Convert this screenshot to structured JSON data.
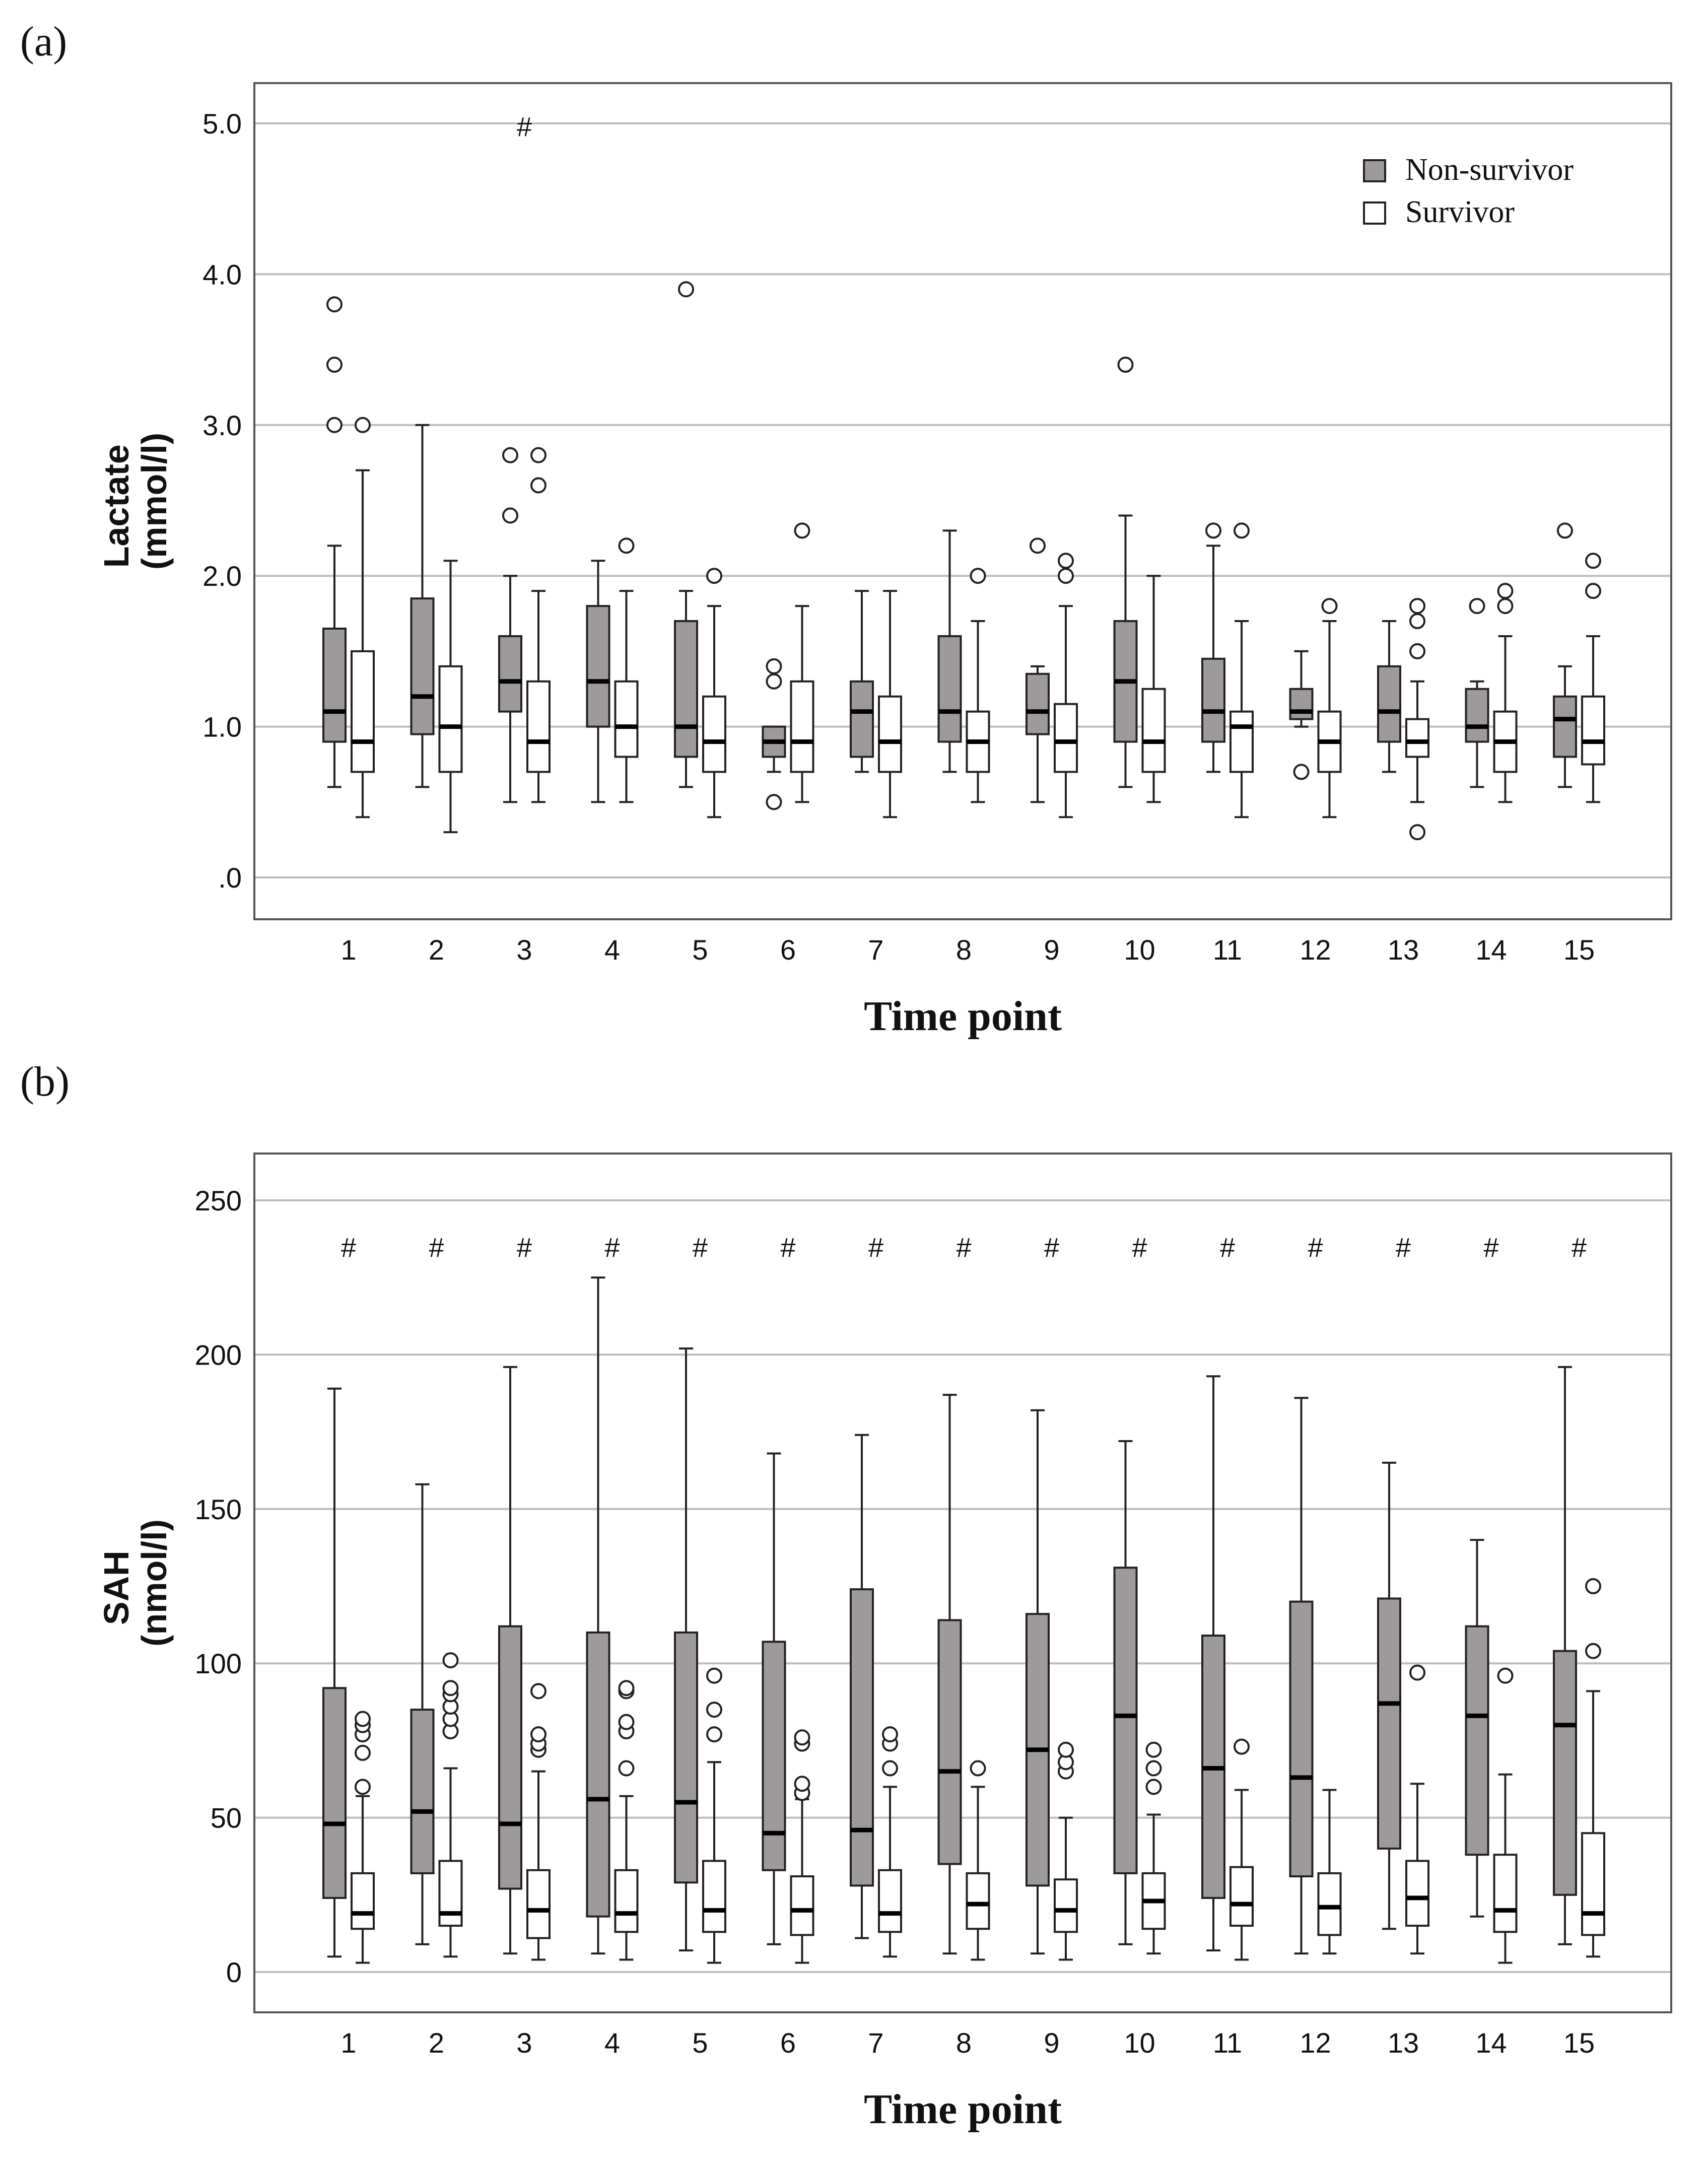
{
  "colors": {
    "non_survivor": "#9e9a9b",
    "survivor": "#ffffff",
    "stroke": "#222222",
    "grid": "#bdbdbd"
  },
  "chart_data": [
    {
      "type": "box",
      "panel_label": "(a)",
      "xlabel": "Time point",
      "ylabel_line1": "Lactate",
      "ylabel_line2": "(mmol/l)",
      "ylim": [
        0,
        5.0
      ],
      "yticks": [
        0,
        1.0,
        2.0,
        3.0,
        4.0,
        5.0
      ],
      "ytick_labels": [
        ".0",
        "1.0",
        "2.0",
        "3.0",
        "4.0",
        "5.0"
      ],
      "categories": [
        "1",
        "2",
        "3",
        "4",
        "5",
        "6",
        "7",
        "8",
        "9",
        "10",
        "11",
        "12",
        "13",
        "14",
        "15"
      ],
      "grid": true,
      "legend": {
        "position": "top-right",
        "entries": [
          "Non-survivor",
          "Survivor"
        ]
      },
      "significance_marks": [
        {
          "category": "3",
          "label": "#"
        }
      ],
      "series": [
        {
          "name": "Non-survivor",
          "boxes": [
            {
              "min": 0.6,
              "q1": 0.9,
              "median": 1.1,
              "q3": 1.65,
              "max": 2.2,
              "outliers": [
                3.0,
                3.4,
                3.8
              ]
            },
            {
              "min": 0.6,
              "q1": 0.95,
              "median": 1.2,
              "q3": 1.85,
              "max": 3.0,
              "outliers": []
            },
            {
              "min": 0.5,
              "q1": 1.1,
              "median": 1.3,
              "q3": 1.6,
              "max": 2.0,
              "outliers": [
                2.4,
                2.8
              ]
            },
            {
              "min": 0.5,
              "q1": 1.0,
              "median": 1.3,
              "q3": 1.8,
              "max": 2.1,
              "outliers": []
            },
            {
              "min": 0.6,
              "q1": 0.8,
              "median": 1.0,
              "q3": 1.7,
              "max": 1.9,
              "outliers": [
                3.9
              ]
            },
            {
              "min": 0.7,
              "q1": 0.8,
              "median": 0.9,
              "q3": 1.0,
              "max": 1.0,
              "outliers": [
                0.5,
                1.3,
                1.4
              ]
            },
            {
              "min": 0.7,
              "q1": 0.8,
              "median": 1.1,
              "q3": 1.3,
              "max": 1.9,
              "outliers": []
            },
            {
              "min": 0.7,
              "q1": 0.9,
              "median": 1.1,
              "q3": 1.6,
              "max": 2.3,
              "outliers": []
            },
            {
              "min": 0.5,
              "q1": 0.95,
              "median": 1.1,
              "q3": 1.35,
              "max": 1.4,
              "outliers": [
                2.2
              ]
            },
            {
              "min": 0.6,
              "q1": 0.9,
              "median": 1.3,
              "q3": 1.7,
              "max": 2.4,
              "outliers": [
                3.4
              ]
            },
            {
              "min": 0.7,
              "q1": 0.9,
              "median": 1.1,
              "q3": 1.45,
              "max": 2.2,
              "outliers": [
                2.3
              ]
            },
            {
              "min": 1.0,
              "q1": 1.05,
              "median": 1.1,
              "q3": 1.25,
              "max": 1.5,
              "outliers": [
                0.7
              ]
            },
            {
              "min": 0.7,
              "q1": 0.9,
              "median": 1.1,
              "q3": 1.4,
              "max": 1.7,
              "outliers": []
            },
            {
              "min": 0.6,
              "q1": 0.9,
              "median": 1.0,
              "q3": 1.25,
              "max": 1.3,
              "outliers": [
                1.8
              ]
            },
            {
              "min": 0.6,
              "q1": 0.8,
              "median": 1.05,
              "q3": 1.2,
              "max": 1.4,
              "outliers": [
                2.3
              ]
            }
          ]
        },
        {
          "name": "Survivor",
          "boxes": [
            {
              "min": 0.4,
              "q1": 0.7,
              "median": 0.9,
              "q3": 1.5,
              "max": 2.7,
              "outliers": [
                3.0
              ]
            },
            {
              "min": 0.3,
              "q1": 0.7,
              "median": 1.0,
              "q3": 1.4,
              "max": 2.1,
              "outliers": []
            },
            {
              "min": 0.5,
              "q1": 0.7,
              "median": 0.9,
              "q3": 1.3,
              "max": 1.9,
              "outliers": [
                2.6,
                2.8
              ]
            },
            {
              "min": 0.5,
              "q1": 0.8,
              "median": 1.0,
              "q3": 1.3,
              "max": 1.9,
              "outliers": [
                2.2
              ]
            },
            {
              "min": 0.4,
              "q1": 0.7,
              "median": 0.9,
              "q3": 1.2,
              "max": 1.8,
              "outliers": [
                2.0
              ]
            },
            {
              "min": 0.5,
              "q1": 0.7,
              "median": 0.9,
              "q3": 1.3,
              "max": 1.8,
              "outliers": [
                2.3
              ]
            },
            {
              "min": 0.4,
              "q1": 0.7,
              "median": 0.9,
              "q3": 1.2,
              "max": 1.9,
              "outliers": []
            },
            {
              "min": 0.5,
              "q1": 0.7,
              "median": 0.9,
              "q3": 1.1,
              "max": 1.7,
              "outliers": [
                2.0
              ]
            },
            {
              "min": 0.4,
              "q1": 0.7,
              "median": 0.9,
              "q3": 1.15,
              "max": 1.8,
              "outliers": [
                2.0,
                2.1
              ]
            },
            {
              "min": 0.5,
              "q1": 0.7,
              "median": 0.9,
              "q3": 1.25,
              "max": 2.0,
              "outliers": []
            },
            {
              "min": 0.4,
              "q1": 0.7,
              "median": 1.0,
              "q3": 1.1,
              "max": 1.7,
              "outliers": [
                2.3
              ]
            },
            {
              "min": 0.4,
              "q1": 0.7,
              "median": 0.9,
              "q3": 1.1,
              "max": 1.7,
              "outliers": [
                1.8
              ]
            },
            {
              "min": 0.5,
              "q1": 0.8,
              "median": 0.9,
              "q3": 1.05,
              "max": 1.3,
              "outliers": [
                0.3,
                1.5,
                1.7,
                1.8
              ]
            },
            {
              "min": 0.5,
              "q1": 0.7,
              "median": 0.9,
              "q3": 1.1,
              "max": 1.6,
              "outliers": [
                1.8,
                1.9
              ]
            },
            {
              "min": 0.5,
              "q1": 0.75,
              "median": 0.9,
              "q3": 1.2,
              "max": 1.6,
              "outliers": [
                1.9,
                2.1
              ]
            }
          ]
        }
      ]
    },
    {
      "type": "box",
      "panel_label": "(b)",
      "xlabel": "Time point",
      "ylabel_line1": "SAH",
      "ylabel_line2": "(nmol/l)",
      "ylim": [
        0,
        250
      ],
      "yticks": [
        0,
        50,
        100,
        150,
        200,
        250
      ],
      "ytick_labels": [
        "0",
        "50",
        "100",
        "150",
        "200",
        "250"
      ],
      "categories": [
        "1",
        "2",
        "3",
        "4",
        "5",
        "6",
        "7",
        "8",
        "9",
        "10",
        "11",
        "12",
        "13",
        "14",
        "15"
      ],
      "grid": true,
      "significance_marks": [
        {
          "category": "1",
          "label": "#"
        },
        {
          "category": "2",
          "label": "#"
        },
        {
          "category": "3",
          "label": "#"
        },
        {
          "category": "4",
          "label": "#"
        },
        {
          "category": "5",
          "label": "#"
        },
        {
          "category": "6",
          "label": "#"
        },
        {
          "category": "7",
          "label": "#"
        },
        {
          "category": "8",
          "label": "#"
        },
        {
          "category": "9",
          "label": "#"
        },
        {
          "category": "10",
          "label": "#"
        },
        {
          "category": "11",
          "label": "#"
        },
        {
          "category": "12",
          "label": "#"
        },
        {
          "category": "13",
          "label": "#"
        },
        {
          "category": "14",
          "label": "#"
        },
        {
          "category": "15",
          "label": "#"
        }
      ],
      "series": [
        {
          "name": "Non-survivor",
          "boxes": [
            {
              "min": 5,
              "q1": 24,
              "median": 48,
              "q3": 92,
              "max": 189,
              "outliers": []
            },
            {
              "min": 9,
              "q1": 32,
              "median": 52,
              "q3": 85,
              "max": 158,
              "outliers": []
            },
            {
              "min": 6,
              "q1": 27,
              "median": 48,
              "q3": 112,
              "max": 196,
              "outliers": []
            },
            {
              "min": 6,
              "q1": 18,
              "median": 56,
              "q3": 110,
              "max": 225,
              "outliers": []
            },
            {
              "min": 7,
              "q1": 29,
              "median": 55,
              "q3": 110,
              "max": 202,
              "outliers": []
            },
            {
              "min": 9,
              "q1": 33,
              "median": 45,
              "q3": 107,
              "max": 168,
              "outliers": []
            },
            {
              "min": 11,
              "q1": 28,
              "median": 46,
              "q3": 124,
              "max": 174,
              "outliers": []
            },
            {
              "min": 6,
              "q1": 35,
              "median": 65,
              "q3": 114,
              "max": 187,
              "outliers": []
            },
            {
              "min": 6,
              "q1": 28,
              "median": 72,
              "q3": 116,
              "max": 182,
              "outliers": []
            },
            {
              "min": 9,
              "q1": 32,
              "median": 83,
              "q3": 131,
              "max": 172,
              "outliers": []
            },
            {
              "min": 7,
              "q1": 24,
              "median": 66,
              "q3": 109,
              "max": 193,
              "outliers": []
            },
            {
              "min": 6,
              "q1": 31,
              "median": 63,
              "q3": 120,
              "max": 186,
              "outliers": []
            },
            {
              "min": 14,
              "q1": 40,
              "median": 87,
              "q3": 121,
              "max": 165,
              "outliers": []
            },
            {
              "min": 18,
              "q1": 38,
              "median": 83,
              "q3": 112,
              "max": 140,
              "outliers": []
            },
            {
              "min": 9,
              "q1": 25,
              "median": 80,
              "q3": 104,
              "max": 196,
              "outliers": []
            }
          ]
        },
        {
          "name": "Survivor",
          "boxes": [
            {
              "min": 3,
              "q1": 14,
              "median": 19,
              "q3": 32,
              "max": 57,
              "outliers": [
                60,
                71,
                77,
                80,
                82
              ]
            },
            {
              "min": 5,
              "q1": 15,
              "median": 19,
              "q3": 36,
              "max": 66,
              "outliers": [
                78,
                82,
                86,
                90,
                92,
                101
              ]
            },
            {
              "min": 4,
              "q1": 11,
              "median": 20,
              "q3": 33,
              "max": 65,
              "outliers": [
                72,
                74,
                77,
                91
              ]
            },
            {
              "min": 4,
              "q1": 13,
              "median": 19,
              "q3": 33,
              "max": 57,
              "outliers": [
                66,
                78,
                81,
                91,
                92
              ]
            },
            {
              "min": 3,
              "q1": 13,
              "median": 20,
              "q3": 36,
              "max": 68,
              "outliers": [
                77,
                85,
                96
              ]
            },
            {
              "min": 3,
              "q1": 12,
              "median": 20,
              "q3": 31,
              "max": 56,
              "outliers": [
                58,
                61,
                74,
                76
              ]
            },
            {
              "min": 5,
              "q1": 13,
              "median": 19,
              "q3": 33,
              "max": 60,
              "outliers": [
                66,
                74,
                77
              ]
            },
            {
              "min": 4,
              "q1": 14,
              "median": 22,
              "q3": 32,
              "max": 60,
              "outliers": [
                66
              ]
            },
            {
              "min": 4,
              "q1": 13,
              "median": 20,
              "q3": 30,
              "max": 50,
              "outliers": [
                65,
                68,
                72
              ]
            },
            {
              "min": 6,
              "q1": 14,
              "median": 23,
              "q3": 32,
              "max": 51,
              "outliers": [
                60,
                66,
                72
              ]
            },
            {
              "min": 4,
              "q1": 15,
              "median": 22,
              "q3": 34,
              "max": 59,
              "outliers": [
                73
              ]
            },
            {
              "min": 6,
              "q1": 12,
              "median": 21,
              "q3": 32,
              "max": 59,
              "outliers": []
            },
            {
              "min": 6,
              "q1": 15,
              "median": 24,
              "q3": 36,
              "max": 61,
              "outliers": [
                97
              ]
            },
            {
              "min": 3,
              "q1": 13,
              "median": 20,
              "q3": 38,
              "max": 64,
              "outliers": [
                96
              ]
            },
            {
              "min": 5,
              "q1": 12,
              "median": 19,
              "q3": 45,
              "max": 91,
              "outliers": [
                104,
                125
              ]
            }
          ]
        }
      ]
    }
  ]
}
